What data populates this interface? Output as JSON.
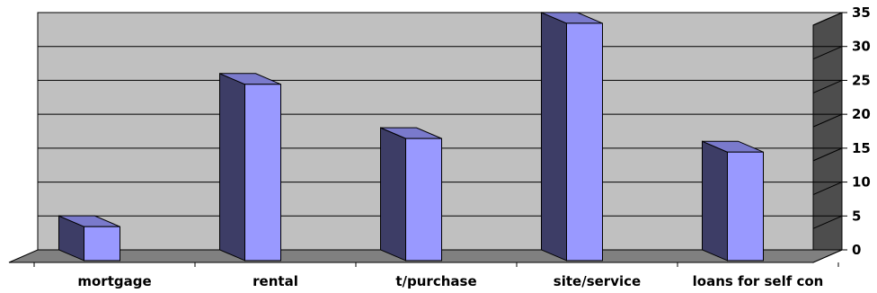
{
  "chart_data": {
    "type": "bar",
    "categories": [
      "mortgage",
      "rental",
      "t/purchase",
      "site/service",
      "loans for self con"
    ],
    "values": [
      5,
      26,
      18,
      35,
      16
    ],
    "ylim": [
      0,
      35
    ],
    "yticks": [
      "0",
      "5",
      "10",
      "15",
      "20",
      "25",
      "30",
      "35"
    ],
    "ytick_values": [
      0,
      5,
      10,
      15,
      20,
      25,
      30,
      35
    ],
    "title": "",
    "xlabel": "",
    "ylabel": "",
    "grid": true,
    "yaxis_side": "right",
    "style": "3d",
    "colors": {
      "bar_front": "#9999ff",
      "bar_side": "#3d3d66",
      "bar_top": "#7a7acc",
      "wall": "#c0c0c0",
      "floor": "#808080",
      "axis_wall": "#4d4d4d",
      "grid": "#000000"
    }
  }
}
